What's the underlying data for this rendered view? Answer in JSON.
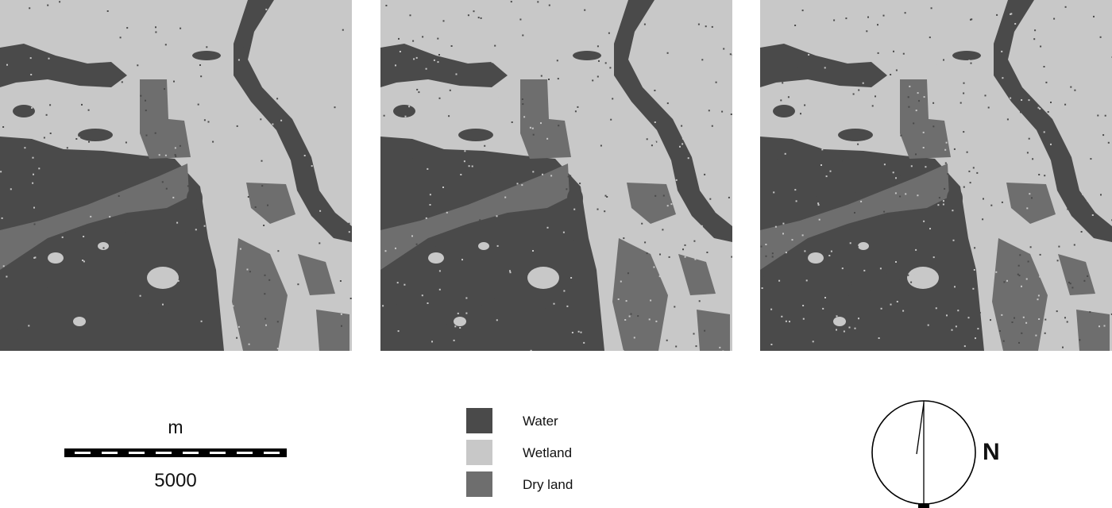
{
  "colors": {
    "water": "#4a4a4a",
    "wetland": "#c8c8c8",
    "dry_land": "#6e6e6e"
  },
  "maps": [
    {
      "id": "map-1"
    },
    {
      "id": "map-2"
    },
    {
      "id": "map-3"
    }
  ],
  "scale_bar": {
    "unit": "m",
    "value": "5000"
  },
  "legend": {
    "items": [
      {
        "label": "Water",
        "class": "water"
      },
      {
        "label": "Wetland",
        "class": "wetland"
      },
      {
        "label": "Dry land",
        "class": "dry_land"
      }
    ]
  },
  "north_arrow": {
    "label": "N"
  }
}
